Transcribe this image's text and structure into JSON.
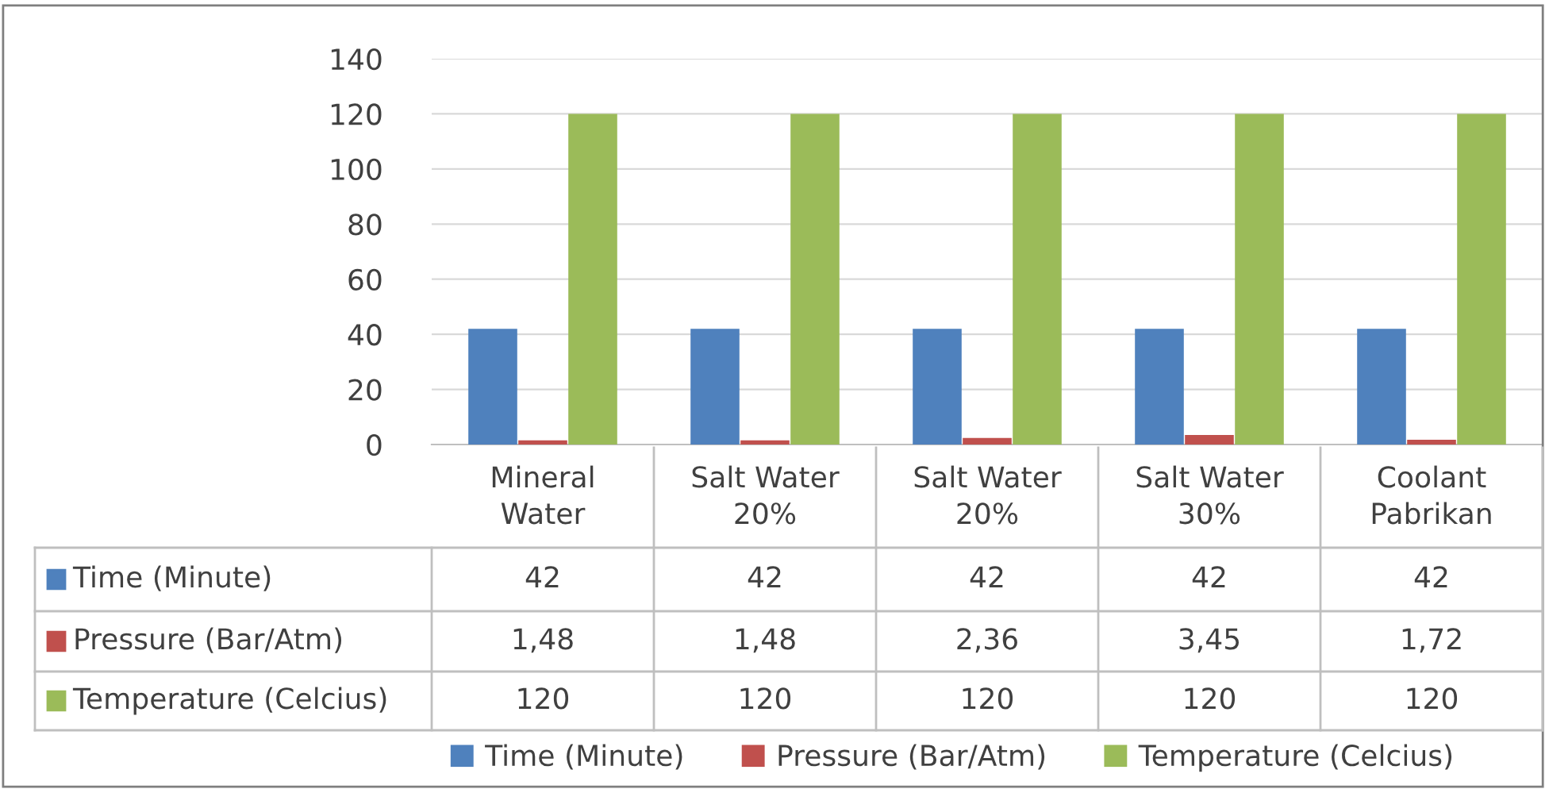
{
  "chart_data": {
    "type": "bar",
    "categories": [
      "Mineral Water",
      "Salt Water 20%",
      "Salt Water 20%",
      "Salt Water 30%",
      "Coolant Pabrikan"
    ],
    "series": [
      {
        "name": "Time (Minute)",
        "color": "#4f81bd",
        "values": [
          42,
          42,
          42,
          42,
          42
        ],
        "value_labels": [
          "42",
          "42",
          "42",
          "42",
          "42"
        ]
      },
      {
        "name": "Pressure (Bar/Atm)",
        "color": "#c0504d",
        "values": [
          1.48,
          1.48,
          2.36,
          3.45,
          1.72
        ],
        "value_labels": [
          "1,48",
          "1,48",
          "2,36",
          "3,45",
          "1,72"
        ]
      },
      {
        "name": "Temperature (Celcius)",
        "color": "#9bbb59",
        "values": [
          120,
          120,
          120,
          120,
          120
        ],
        "value_labels": [
          "120",
          "120",
          "120",
          "120",
          "120"
        ]
      }
    ],
    "ylim": [
      0,
      140
    ],
    "yticks": [
      0,
      20,
      40,
      60,
      80,
      100,
      120,
      140
    ],
    "grid": "y",
    "legend": "bottom"
  }
}
